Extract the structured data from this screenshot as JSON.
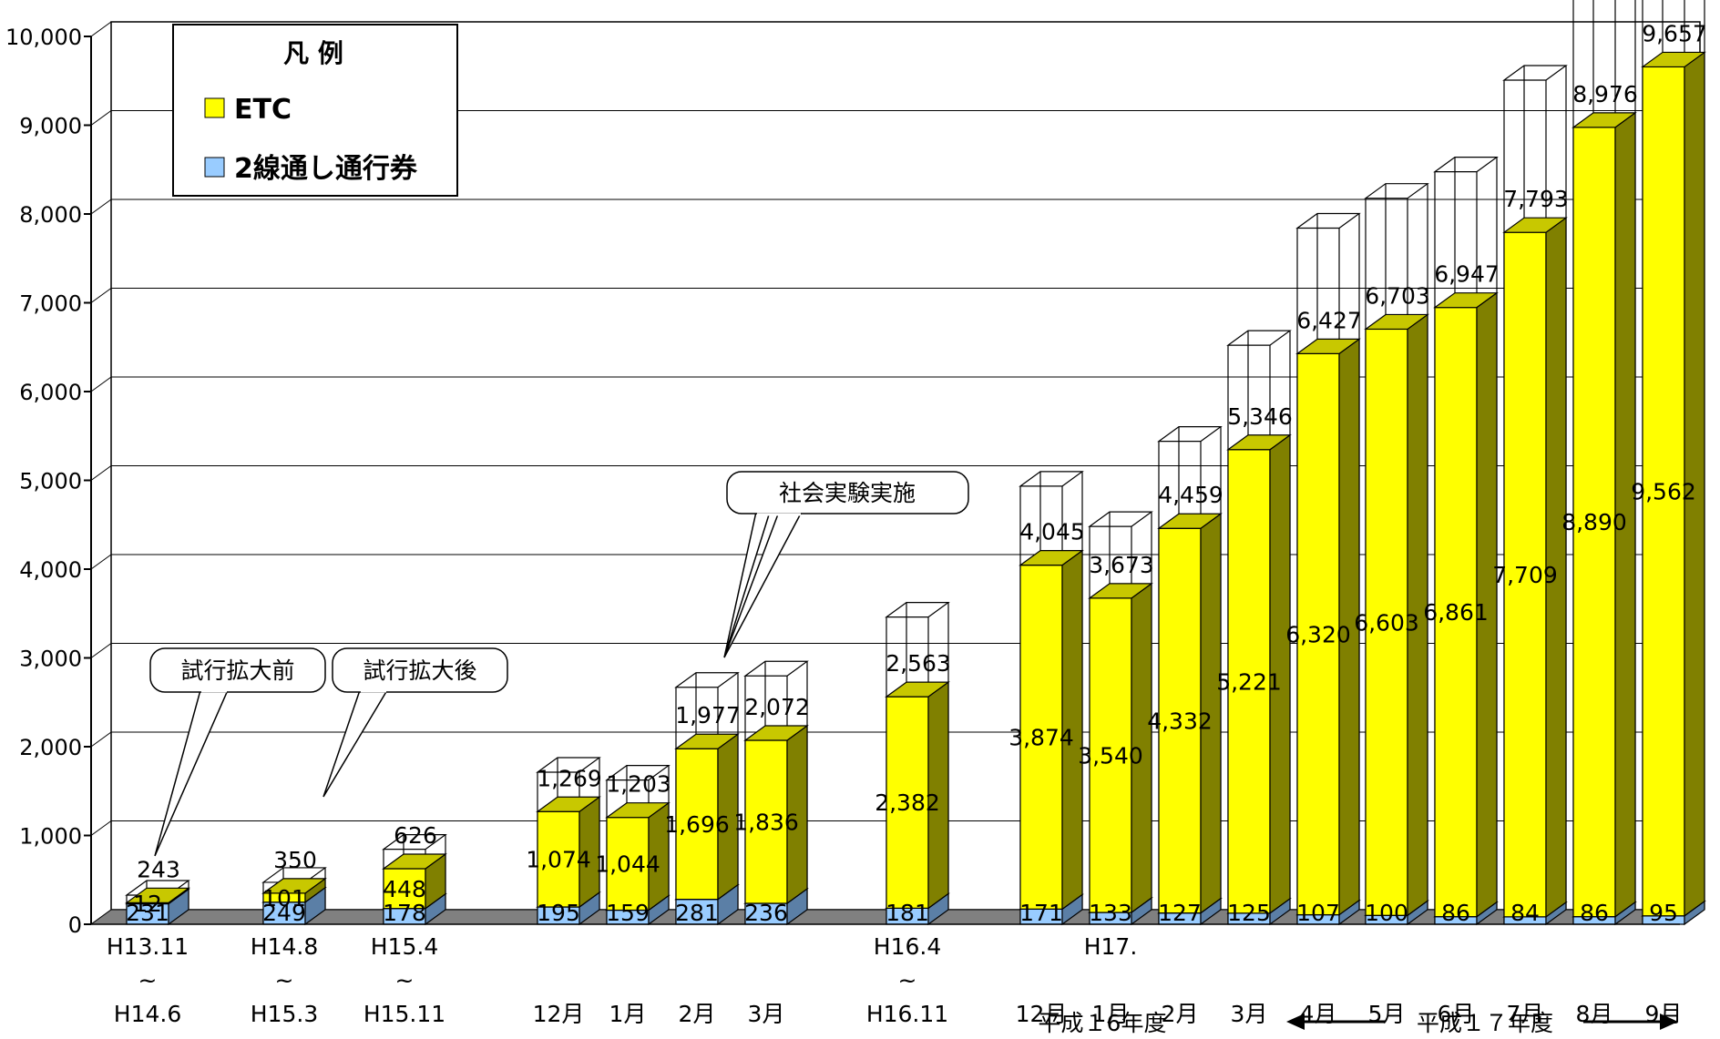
{
  "chart_data": {
    "type": "bar",
    "stacked": true,
    "three_d": true,
    "ylim": [
      0,
      10000
    ],
    "yticks": [
      "0",
      "1,000",
      "2,000",
      "3,000",
      "4,000",
      "5,000",
      "6,000",
      "7,000",
      "8,000",
      "9,000",
      "10,000"
    ],
    "grid": true,
    "legend": {
      "title": "凡 例",
      "position": "top-left",
      "items": [
        {
          "name": "ETC",
          "color": "#ffff00"
        },
        {
          "name": "2線通し通行券",
          "color": "#99ccff"
        }
      ]
    },
    "categories": [
      {
        "lines": [
          "H13.11",
          "~",
          "H14.6"
        ]
      },
      {
        "lines": [
          "H14.8",
          "~",
          "H15.3"
        ]
      },
      {
        "lines": [
          "H15.4",
          "~",
          "H15.11"
        ]
      },
      {
        "lines": [
          "",
          "",
          "12月"
        ]
      },
      {
        "lines": [
          "",
          "",
          "1月"
        ]
      },
      {
        "lines": [
          "",
          "",
          "2月"
        ]
      },
      {
        "lines": [
          "",
          "",
          "3月"
        ]
      },
      {
        "lines": [
          "H16.4",
          "~",
          "H16.11"
        ]
      },
      {
        "lines": [
          "",
          "",
          "12月"
        ]
      },
      {
        "lines": [
          "H17.",
          "",
          "1月"
        ]
      },
      {
        "lines": [
          "",
          "",
          "2月"
        ]
      },
      {
        "lines": [
          "",
          "",
          "3月"
        ]
      },
      {
        "lines": [
          "",
          "",
          "4月"
        ]
      },
      {
        "lines": [
          "",
          "",
          "5月"
        ]
      },
      {
        "lines": [
          "",
          "",
          "6月"
        ]
      },
      {
        "lines": [
          "",
          "",
          "7月"
        ]
      },
      {
        "lines": [
          "",
          "",
          "8月"
        ]
      },
      {
        "lines": [
          "",
          "",
          "9月"
        ]
      }
    ],
    "series": [
      {
        "name": "2線通し通行券",
        "color": "#99ccff",
        "values": [
          231,
          249,
          178,
          195,
          159,
          281,
          236,
          181,
          171,
          133,
          127,
          125,
          107,
          100,
          86,
          84,
          86,
          95
        ]
      },
      {
        "name": "ETC",
        "color": "#ffff00",
        "values": [
          12,
          101,
          448,
          1074,
          1044,
          1696,
          1836,
          2382,
          3874,
          3540,
          4332,
          5221,
          6320,
          6603,
          6861,
          7709,
          8890,
          9562
        ]
      }
    ],
    "value_labels": {
      "bottom": [
        "231",
        "249",
        "178",
        "195",
        "159",
        "281",
        "236",
        "181",
        "171",
        "133",
        "127",
        "125",
        "107",
        "100",
        "86",
        "84",
        "86",
        "95"
      ],
      "etc": [
        "12",
        "101",
        "448",
        "1,074",
        "1,044",
        "1,696",
        "1,836",
        "2,382",
        "3,874",
        "3,540",
        "4,332",
        "5,221",
        "6,320",
        "6,603",
        "6,861",
        "7,709",
        "8,890",
        "9,562"
      ]
    },
    "totals": [
      243,
      350,
      626,
      1269,
      1203,
      1977,
      2072,
      2563,
      4045,
      3673,
      4459,
      5346,
      6427,
      6703,
      6947,
      7793,
      8976,
      9657
    ],
    "total_labels": [
      "243",
      "350",
      "626",
      "1,269",
      "1,203",
      "1,977",
      "2,072",
      "2,563",
      "4,045",
      "3,673",
      "4,459",
      "5,346",
      "6,427",
      "6,703",
      "6,947",
      "7,793",
      "8,976",
      "9,657"
    ],
    "annotations": {
      "callout_before": "試行拡大前",
      "callout_after": "試行拡大後",
      "callout_experiment": "社会実験実施",
      "fiscal_h16": "平成１6年度",
      "fiscal_h17": "平成１７年度"
    }
  },
  "colors": {
    "etc_front": "#ffff00",
    "etc_top": "#c8c800",
    "etc_side": "#808000",
    "ticket_front": "#99ccff",
    "ticket_top": "#7aa3cc",
    "ticket_side": "#5b7fa6",
    "floor": "#808080"
  }
}
